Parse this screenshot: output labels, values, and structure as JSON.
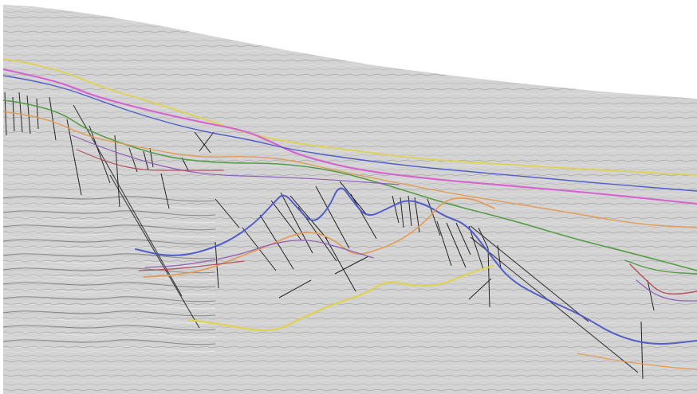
{
  "image": {
    "type": "seismic-section",
    "colors": {
      "background": "#ffffff",
      "seismic_light": "#d3d3d3",
      "seismic_dark": "#303030",
      "fault": "#111111",
      "horizon_yellow": "#e0d24a",
      "horizon_magenta": "#d85bd1",
      "horizon_blue": "#4b58c8",
      "horizon_green": "#4d9a3f",
      "horizon_orange": "#e49a4f",
      "horizon_purple": "#8d5ab6",
      "horizon_red": "#b04c5b"
    }
  }
}
